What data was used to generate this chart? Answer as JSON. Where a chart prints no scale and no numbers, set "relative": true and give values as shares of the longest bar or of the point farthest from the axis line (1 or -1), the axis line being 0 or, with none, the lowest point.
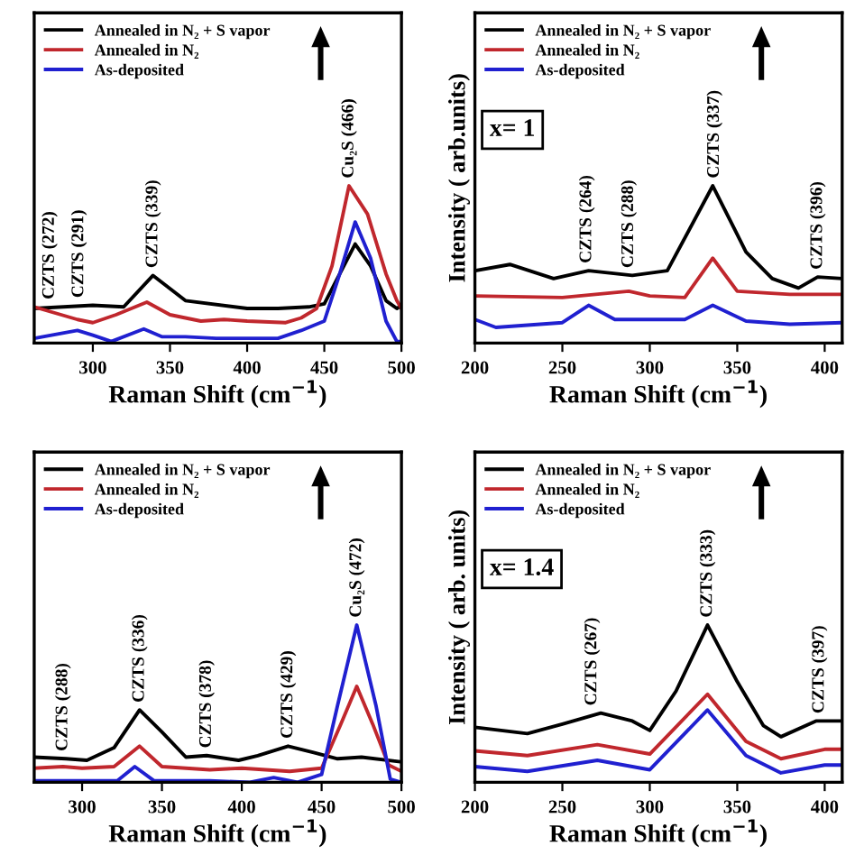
{
  "chart_data": [
    {
      "type": "line",
      "relative": true,
      "xlabel": "Raman Shift (cm$^{−1}$)",
      "xlim": [
        262,
        500
      ],
      "xticks": [
        300,
        350,
        400,
        450,
        500
      ],
      "legend": "top left",
      "annotations": [
        {
          "text": "CZTS (272)",
          "x": 272,
          "y": 0.23
        },
        {
          "text": "CZTS (291)",
          "x": 291,
          "y": 0.24
        },
        {
          "text": "CZTS (339)",
          "x": 339,
          "y": 0.43
        },
        {
          "text": "Cu₂S (466)",
          "x": 466,
          "y": 1.0
        }
      ],
      "series": [
        {
          "name": "Annealed in N₂ + S vapor",
          "color": "#000000",
          "x": [
            262,
            300,
            320,
            339,
            360,
            400,
            420,
            440,
            450,
            460,
            470,
            480,
            490,
            497,
            500
          ],
          "values": [
            0.22,
            0.24,
            0.23,
            0.43,
            0.27,
            0.22,
            0.22,
            0.23,
            0.25,
            0.44,
            0.63,
            0.49,
            0.27,
            0.22,
            0.24
          ]
        },
        {
          "name": "Annealed in N₂",
          "color": "#c0272d",
          "x": [
            262,
            290,
            300,
            315,
            335,
            350,
            370,
            385,
            400,
            425,
            435,
            445,
            455,
            466,
            478,
            490,
            497,
            500
          ],
          "values": [
            0.23,
            0.15,
            0.13,
            0.18,
            0.26,
            0.18,
            0.14,
            0.15,
            0.14,
            0.13,
            0.16,
            0.22,
            0.49,
            1.0,
            0.82,
            0.44,
            0.27,
            0.22
          ]
        },
        {
          "name": "As-deposited",
          "color": "#2020d0",
          "x": [
            262,
            290,
            300,
            312,
            333,
            345,
            360,
            380,
            420,
            435,
            450,
            460,
            470,
            480,
            490,
            497,
            500
          ],
          "values": [
            0.03,
            0.08,
            0.05,
            0.01,
            0.09,
            0.04,
            0.04,
            0.03,
            0.03,
            0.08,
            0.14,
            0.44,
            0.77,
            0.54,
            0.14,
            0.01,
            0.01
          ]
        }
      ]
    },
    {
      "type": "line",
      "relative": true,
      "xlabel": "Raman Shift (cm$^{−1}$)",
      "ylabel": "Intensity ( arb.units)",
      "xlim": [
        200,
        410
      ],
      "xticks": [
        200,
        250,
        300,
        350,
        400
      ],
      "legend": "top left",
      "annotations": [
        "x= 1",
        {
          "text": "CZTS (264)",
          "x": 264,
          "y": 0.46
        },
        {
          "text": "CZTS (288)",
          "x": 288,
          "y": 0.43
        },
        {
          "text": "CZTS (337)",
          "x": 337,
          "y": 1.0
        },
        {
          "text": "CZTS (396)",
          "x": 396,
          "y": 0.42
        }
      ],
      "series": [
        {
          "name": "Annealed in N₂ + S vapor",
          "color": "#000000",
          "x": [
            200,
            220,
            245,
            265,
            290,
            310,
            336,
            355,
            370,
            385,
            396,
            410
          ],
          "values": [
            0.46,
            0.5,
            0.41,
            0.46,
            0.43,
            0.46,
            1.0,
            0.58,
            0.41,
            0.35,
            0.42,
            0.41
          ]
        },
        {
          "name": "Annealed in N₂",
          "color": "#c0272d",
          "x": [
            200,
            250,
            288,
            300,
            320,
            336,
            350,
            380,
            410
          ],
          "values": [
            0.3,
            0.29,
            0.33,
            0.3,
            0.29,
            0.54,
            0.33,
            0.31,
            0.31
          ]
        },
        {
          "name": "As-deposited",
          "color": "#2020d0",
          "x": [
            200,
            212,
            250,
            265,
            280,
            320,
            336,
            355,
            380,
            410
          ],
          "values": [
            0.15,
            0.1,
            0.13,
            0.24,
            0.15,
            0.15,
            0.24,
            0.14,
            0.12,
            0.13
          ]
        }
      ]
    },
    {
      "type": "line",
      "relative": true,
      "xlabel": "Raman Shift (cm$^{−1}$)",
      "xlim": [
        270,
        500
      ],
      "xticks": [
        300,
        350,
        400,
        450,
        500
      ],
      "legend": "top left",
      "annotations": [
        {
          "text": "CZTS (288)",
          "x": 288,
          "y": 0.15
        },
        {
          "text": "CZTS (336)",
          "x": 336,
          "y": 0.46
        },
        {
          "text": "CZTS (378)",
          "x": 378,
          "y": 0.17
        },
        {
          "text": "CZTS (429)",
          "x": 429,
          "y": 0.23
        },
        {
          "text": "Cu₂S (472)",
          "x": 472,
          "y": 1.0
        }
      ],
      "series": [
        {
          "name": "Annealed in N₂ + S vapor",
          "color": "#000000",
          "x": [
            270,
            290,
            303,
            320,
            336,
            350,
            365,
            378,
            398,
            410,
            429,
            445,
            460,
            475,
            500
          ],
          "values": [
            0.16,
            0.15,
            0.14,
            0.22,
            0.46,
            0.32,
            0.16,
            0.17,
            0.14,
            0.17,
            0.23,
            0.19,
            0.15,
            0.16,
            0.13
          ]
        },
        {
          "name": "Annealed in N₂",
          "color": "#c0272d",
          "x": [
            270,
            288,
            300,
            320,
            336,
            350,
            380,
            400,
            430,
            450,
            462,
            472,
            482,
            492,
            500
          ],
          "values": [
            0.09,
            0.1,
            0.09,
            0.1,
            0.23,
            0.1,
            0.08,
            0.09,
            0.07,
            0.09,
            0.37,
            0.61,
            0.37,
            0.11,
            0.07
          ]
        },
        {
          "name": "As-deposited",
          "color": "#2020d0",
          "x": [
            270,
            300,
            322,
            333,
            345,
            380,
            405,
            420,
            435,
            450,
            460,
            472,
            484,
            493,
            500
          ],
          "values": [
            0.01,
            0.01,
            0.01,
            0.1,
            0.01,
            0.01,
            0.0,
            0.03,
            0.0,
            0.05,
            0.49,
            1.0,
            0.49,
            0.02,
            0.0
          ]
        }
      ]
    },
    {
      "type": "line",
      "relative": true,
      "xlabel": "Raman Shift (cm$^{−1}$)",
      "ylabel": "Intensity ( arb. units)",
      "xlim": [
        200,
        410
      ],
      "xticks": [
        200,
        250,
        300,
        350,
        400
      ],
      "legend": "top left",
      "annotations": [
        "x= 1.4",
        {
          "text": "CZTS (267)",
          "x": 267,
          "y": 0.44
        },
        {
          "text": "CZTS (333)",
          "x": 333,
          "y": 1.0
        },
        {
          "text": "CZTS (397)",
          "x": 397,
          "y": 0.39
        }
      ],
      "series": [
        {
          "name": "Annealed in N₂ + S vapor",
          "color": "#000000",
          "x": [
            200,
            230,
            250,
            272,
            290,
            300,
            315,
            333,
            350,
            365,
            375,
            395,
            410
          ],
          "values": [
            0.35,
            0.31,
            0.37,
            0.44,
            0.39,
            0.33,
            0.58,
            1.0,
            0.64,
            0.36,
            0.29,
            0.39,
            0.39
          ]
        },
        {
          "name": "Annealed in N₂",
          "color": "#c0272d",
          "x": [
            200,
            230,
            270,
            300,
            333,
            355,
            375,
            400,
            410
          ],
          "values": [
            0.2,
            0.17,
            0.24,
            0.18,
            0.56,
            0.26,
            0.15,
            0.21,
            0.21
          ]
        },
        {
          "name": "As-deposited",
          "color": "#2020d0",
          "x": [
            200,
            230,
            270,
            300,
            333,
            355,
            375,
            400,
            410
          ],
          "values": [
            0.1,
            0.07,
            0.14,
            0.08,
            0.46,
            0.17,
            0.06,
            0.11,
            0.11
          ]
        }
      ]
    }
  ]
}
